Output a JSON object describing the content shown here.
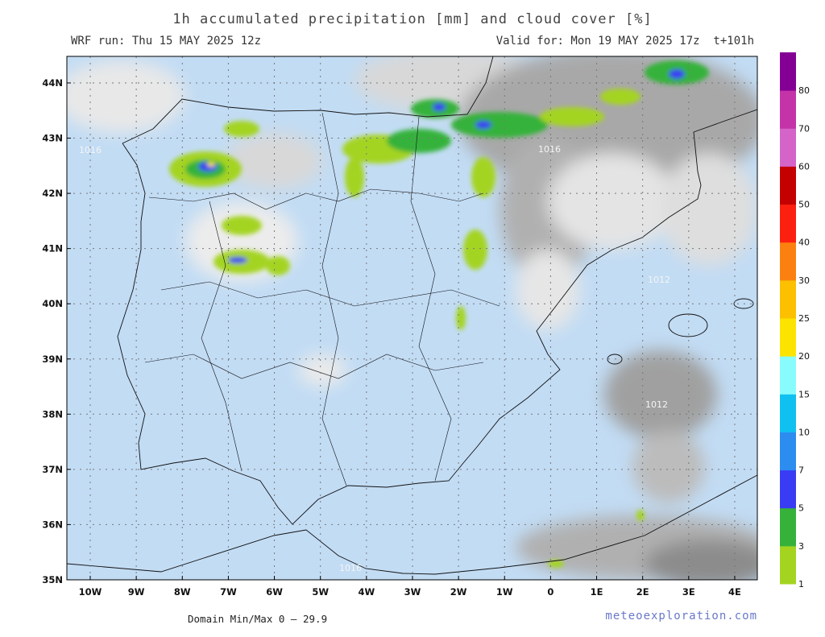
{
  "header": {
    "title": "1h accumulated precipitation [mm] and cloud cover [%]",
    "run": "WRF run: Thu 15 MAY 2025 12z",
    "valid": "Valid for: Mon 19 MAY 2025 17z  t+101h"
  },
  "map": {
    "lat_labels": [
      "44N",
      "43N",
      "42N",
      "41N",
      "40N",
      "39N",
      "38N",
      "37N",
      "36N",
      "35N"
    ],
    "lon_labels": [
      "10W",
      "9W",
      "8W",
      "7W",
      "6W",
      "5W",
      "4W",
      "3W",
      "2W",
      "1W",
      "0",
      "1E",
      "2E",
      "3E",
      "4E"
    ],
    "contour_labels": [
      "1016",
      "1016",
      "1012",
      "1012",
      "1016"
    ]
  },
  "colorbar": {
    "labels": [
      "1",
      "3",
      "5",
      "7",
      "10",
      "15",
      "20",
      "25",
      "30",
      "40",
      "50",
      "60",
      "70",
      "80"
    ],
    "colors": [
      "#a4d420",
      "#36b23a",
      "#3a3cf4",
      "#2c8cf0",
      "#10c0f0",
      "#88fcfc",
      "#fce400",
      "#fcc000",
      "#fc8010",
      "#fc2010",
      "#c40000",
      "#d464c8",
      "#c434a8",
      "#840094"
    ]
  },
  "footer": {
    "minmax": "Domain Min/Max 0 — 29.9",
    "brand": "meteoexploration.com"
  }
}
